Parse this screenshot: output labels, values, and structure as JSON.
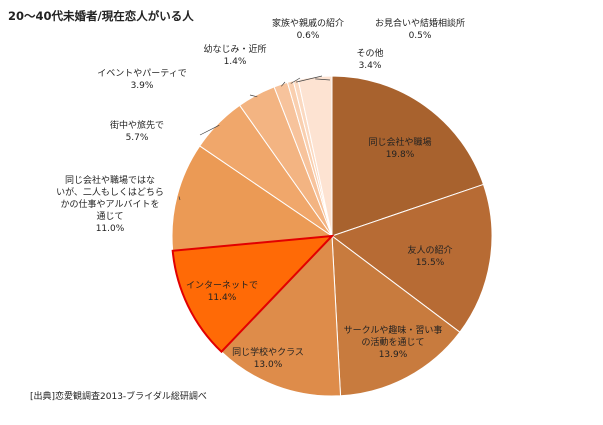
{
  "chart_data": {
    "type": "pie",
    "title": "20～40代未婚者/現在恋人がいる人",
    "source": "[出典]恋愛観調査2013-ブライダル総研調べ",
    "unit": "%",
    "start": "12 o'clock",
    "direction": "clockwise",
    "slices": [
      {
        "label": "同じ会社や職場",
        "value": 19.8,
        "color": "#a8622e"
      },
      {
        "label": "友人の紹介",
        "value": 15.5,
        "color": "#b76b34"
      },
      {
        "label": "サークルや趣味・習い事の活動を通じて",
        "value": 13.9,
        "color": "#c87b3e"
      },
      {
        "label": "同じ学校やクラス",
        "value": 13.0,
        "color": "#de8c4a"
      },
      {
        "label": "インターネットで",
        "value": 11.4,
        "color": "#ff6a06",
        "highlight": true,
        "border_color": "#e20000"
      },
      {
        "label": "同じ会社や職場ではないが、二人もしくはどちらかの仕事やアルバイトを通じて",
        "value": 11.0,
        "color": "#eb9a55"
      },
      {
        "label": "街中や旅先で",
        "value": 5.7,
        "color": "#f0a76b"
      },
      {
        "label": "イベントやパーティで",
        "value": 3.9,
        "color": "#f3b482"
      },
      {
        "label": "幼なじみ・近所",
        "value": 1.4,
        "color": "#f7c39c"
      },
      {
        "label": "家族や親戚の紹介",
        "value": 0.6,
        "color": "#f9cfaf"
      },
      {
        "label": "お見合いや結婚相談所",
        "value": 0.5,
        "color": "#fbd9c0"
      },
      {
        "label": "その他",
        "value": 3.4,
        "color": "#fde3d2"
      }
    ]
  }
}
